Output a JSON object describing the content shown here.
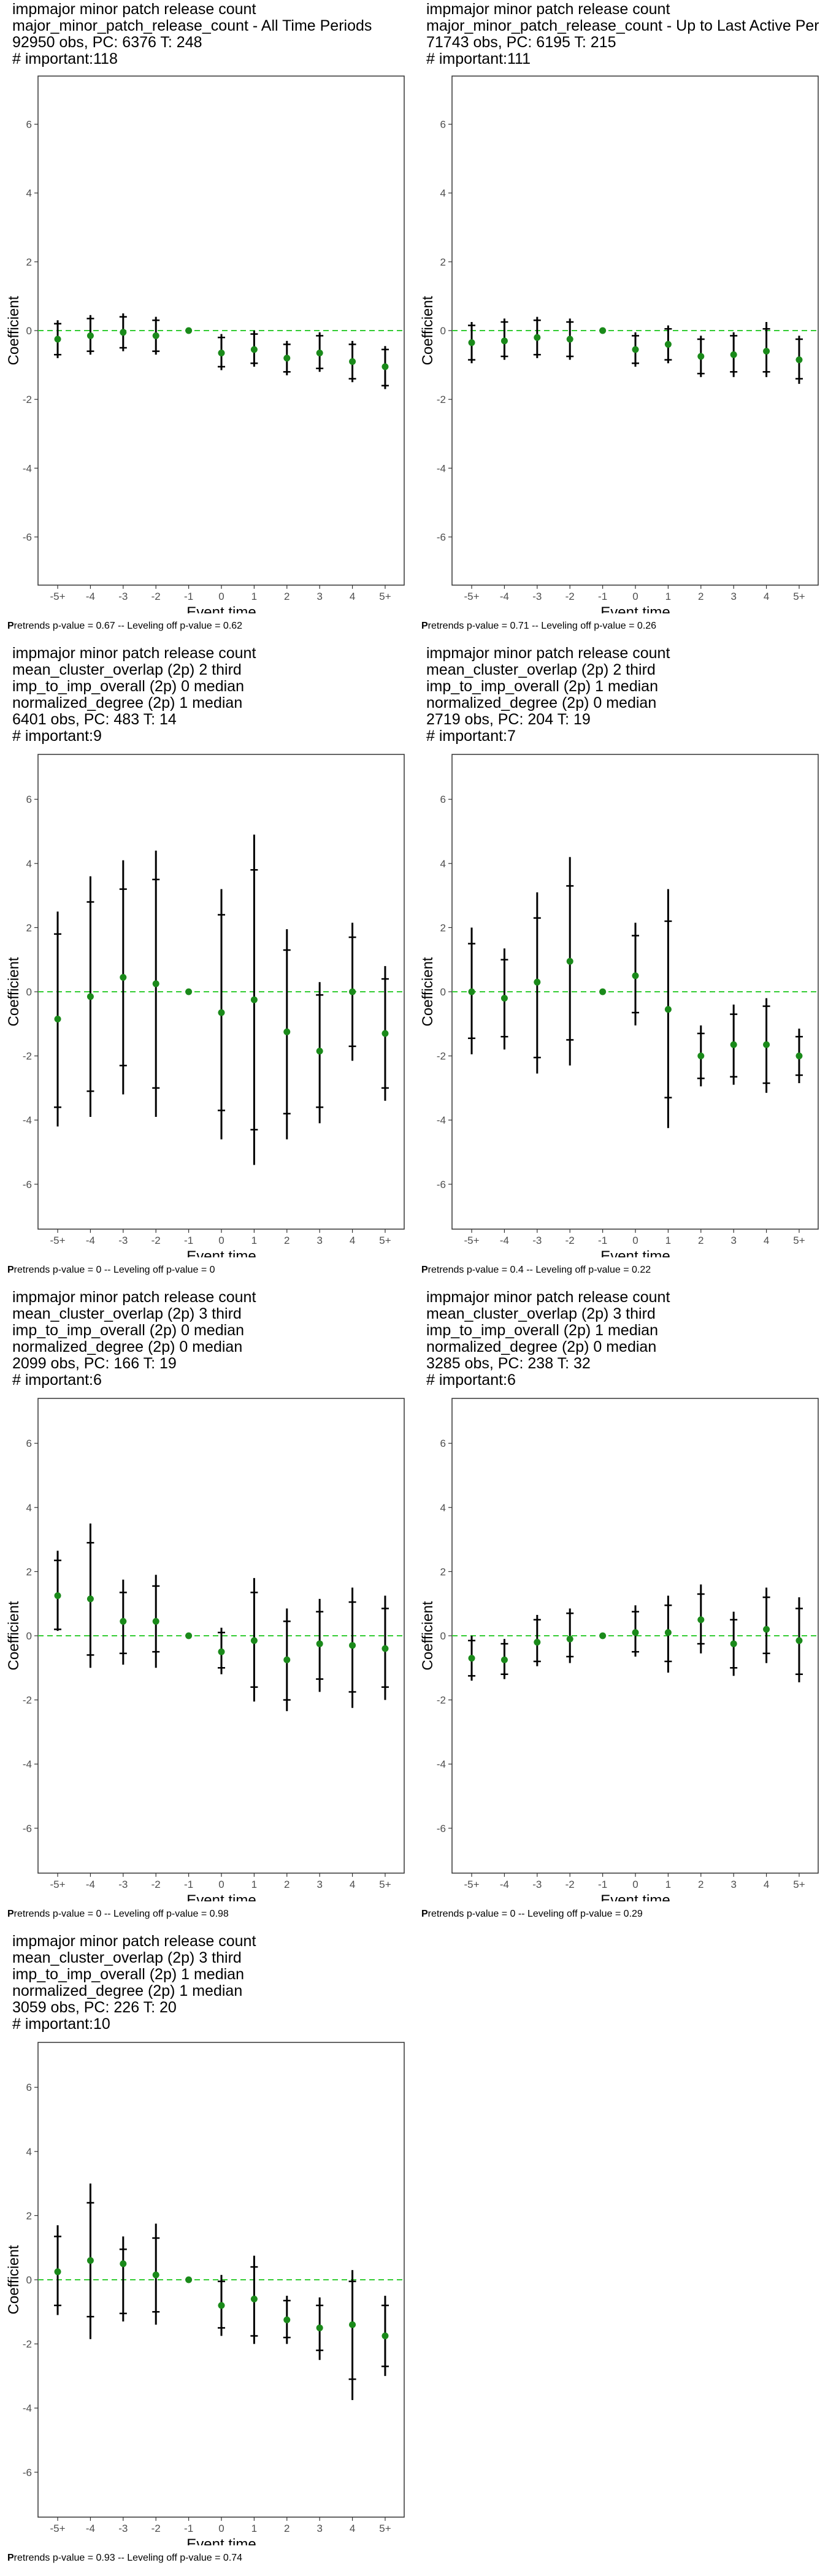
{
  "colors": {
    "point": "#1a8a1a",
    "zero_line": "#33cc33",
    "frame": "#333333",
    "bar": "#000000"
  },
  "chart_data": [
    {
      "type": "scatter",
      "title_lines": [
        " impmajor minor patch release count",
        "major_minor_patch_release_count - All Time Periods",
        "92950 obs, PC: 6376 T: 248",
        "# important:118"
      ],
      "xlabel": "Event time",
      "ylabel": "Coefficient",
      "categories": [
        "-5+",
        "-4",
        "-3",
        "-2",
        "-1",
        "0",
        "1",
        "2",
        "3",
        "4",
        "5+"
      ],
      "ylim": [
        -7.4,
        7.4
      ],
      "yticks": [
        -6,
        -4,
        -2,
        0,
        2,
        4,
        6
      ],
      "estimate": [
        -0.25,
        -0.15,
        -0.05,
        -0.15,
        0,
        -0.65,
        -0.55,
        -0.8,
        -0.65,
        -0.9,
        -1.05
      ],
      "ci95": [
        [
          -0.8,
          0.3
        ],
        [
          -0.7,
          0.45
        ],
        [
          -0.6,
          0.5
        ],
        [
          -0.7,
          0.4
        ],
        [
          0,
          0
        ],
        [
          -1.15,
          -0.1
        ],
        [
          -1.05,
          0.0
        ],
        [
          -1.3,
          -0.3
        ],
        [
          -1.2,
          -0.05
        ],
        [
          -1.5,
          -0.3
        ],
        [
          -1.7,
          -0.45
        ]
      ],
      "ci90": [
        [
          -0.7,
          0.2
        ],
        [
          -0.6,
          0.35
        ],
        [
          -0.5,
          0.4
        ],
        [
          -0.6,
          0.3
        ],
        [
          0,
          0
        ],
        [
          -1.05,
          -0.2
        ],
        [
          -0.95,
          -0.1
        ],
        [
          -1.2,
          -0.4
        ],
        [
          -1.1,
          -0.15
        ],
        [
          -1.4,
          -0.4
        ],
        [
          -1.6,
          -0.55
        ]
      ],
      "footnote": {
        "bold": "P",
        "text": "retrends p-value = 0.67 -- Leveling off p-value = 0.62"
      }
    },
    {
      "type": "scatter",
      "title_lines": [
        " impmajor minor patch release count",
        "major_minor_patch_release_count - Up to Last Active Period",
        "71743 obs, PC: 6195 T: 215",
        "# important:111"
      ],
      "xlabel": "Event time",
      "ylabel": "Coefficient",
      "categories": [
        "-5+",
        "-4",
        "-3",
        "-2",
        "-1",
        "0",
        "1",
        "2",
        "3",
        "4",
        "5+"
      ],
      "ylim": [
        -7.4,
        7.4
      ],
      "yticks": [
        -6,
        -4,
        -2,
        0,
        2,
        4,
        6
      ],
      "estimate": [
        -0.35,
        -0.3,
        -0.2,
        -0.25,
        0,
        -0.55,
        -0.4,
        -0.75,
        -0.7,
        -0.6,
        -0.85
      ],
      "ci95": [
        [
          -0.95,
          0.25
        ],
        [
          -0.85,
          0.35
        ],
        [
          -0.8,
          0.4
        ],
        [
          -0.85,
          0.35
        ],
        [
          0,
          0
        ],
        [
          -1.05,
          -0.05
        ],
        [
          -0.95,
          0.15
        ],
        [
          -1.35,
          -0.15
        ],
        [
          -1.35,
          -0.05
        ],
        [
          -1.35,
          0.25
        ],
        [
          -1.55,
          -0.15
        ]
      ],
      "ci90": [
        [
          -0.85,
          0.15
        ],
        [
          -0.75,
          0.25
        ],
        [
          -0.7,
          0.3
        ],
        [
          -0.75,
          0.25
        ],
        [
          0,
          0
        ],
        [
          -0.95,
          -0.15
        ],
        [
          -0.85,
          0.05
        ],
        [
          -1.25,
          -0.25
        ],
        [
          -1.2,
          -0.15
        ],
        [
          -1.2,
          0.05
        ],
        [
          -1.4,
          -0.25
        ]
      ],
      "footnote": {
        "bold": "P",
        "text": "retrends p-value = 0.71 -- Leveling off p-value = 0.26"
      }
    },
    {
      "type": "scatter",
      "title_lines": [
        " impmajor minor patch release count",
        "mean_cluster_overlap (2p) 2 third",
        "imp_to_imp_overall (2p) 0 median",
        "normalized_degree (2p) 1 median",
        "6401 obs, PC: 483 T: 14",
        "# important:9"
      ],
      "xlabel": "Event time",
      "ylabel": "Coefficient",
      "categories": [
        "-5+",
        "-4",
        "-3",
        "-2",
        "-1",
        "0",
        "1",
        "2",
        "3",
        "4",
        "5+"
      ],
      "ylim": [
        -7.4,
        7.4
      ],
      "yticks": [
        -6,
        -4,
        -2,
        0,
        2,
        4,
        6
      ],
      "estimate": [
        -0.85,
        -0.15,
        0.45,
        0.25,
        0,
        -0.65,
        -0.25,
        -1.25,
        -1.85,
        0.0,
        -1.3
      ],
      "ci95": [
        [
          -4.2,
          2.5
        ],
        [
          -3.9,
          3.6
        ],
        [
          -3.2,
          4.1
        ],
        [
          -3.9,
          4.4
        ],
        [
          0,
          0
        ],
        [
          -4.6,
          3.2
        ],
        [
          -5.4,
          4.9
        ],
        [
          -4.6,
          1.95
        ],
        [
          -4.1,
          0.3
        ],
        [
          -2.15,
          2.15
        ],
        [
          -3.4,
          0.8
        ]
      ],
      "ci90": [
        [
          -3.6,
          1.8
        ],
        [
          -3.1,
          2.8
        ],
        [
          -2.3,
          3.2
        ],
        [
          -3.0,
          3.5
        ],
        [
          0,
          0
        ],
        [
          -3.7,
          2.4
        ],
        [
          -4.3,
          3.8
        ],
        [
          -3.8,
          1.3
        ],
        [
          -3.6,
          -0.1
        ],
        [
          -1.7,
          1.7
        ],
        [
          -3.0,
          0.4
        ]
      ],
      "footnote": {
        "bold": "P",
        "text": "retrends p-value = 0 -- Leveling off p-value = 0"
      }
    },
    {
      "type": "scatter",
      "title_lines": [
        " impmajor minor patch release count",
        "mean_cluster_overlap (2p) 2 third",
        "imp_to_imp_overall (2p) 1 median",
        "normalized_degree (2p) 0 median",
        "2719 obs, PC: 204 T: 19",
        "# important:7"
      ],
      "xlabel": "Event time",
      "ylabel": "Coefficient",
      "categories": [
        "-5+",
        "-4",
        "-3",
        "-2",
        "-1",
        "0",
        "1",
        "2",
        "3",
        "4",
        "5+"
      ],
      "ylim": [
        -7.4,
        7.4
      ],
      "yticks": [
        -6,
        -4,
        -2,
        0,
        2,
        4,
        6
      ],
      "estimate": [
        0.0,
        -0.2,
        0.3,
        0.95,
        0,
        0.5,
        -0.55,
        -2.0,
        -1.65,
        -1.65,
        -2.0
      ],
      "ci95": [
        [
          -1.95,
          2.0
        ],
        [
          -1.8,
          1.35
        ],
        [
          -2.55,
          3.1
        ],
        [
          -2.3,
          4.2
        ],
        [
          0,
          0
        ],
        [
          -1.05,
          2.15
        ],
        [
          -4.25,
          3.2
        ],
        [
          -2.95,
          -1.05
        ],
        [
          -2.9,
          -0.4
        ],
        [
          -3.15,
          -0.2
        ],
        [
          -2.85,
          -1.15
        ]
      ],
      "ci90": [
        [
          -1.45,
          1.5
        ],
        [
          -1.4,
          1.0
        ],
        [
          -2.05,
          2.3
        ],
        [
          -1.5,
          3.3
        ],
        [
          0,
          0
        ],
        [
          -0.65,
          1.75
        ],
        [
          -3.3,
          2.2
        ],
        [
          -2.7,
          -1.3
        ],
        [
          -2.65,
          -0.7
        ],
        [
          -2.85,
          -0.45
        ],
        [
          -2.6,
          -1.4
        ]
      ],
      "footnote": {
        "bold": "P",
        "text": "retrends p-value = 0.4 -- Leveling off p-value = 0.22"
      }
    },
    {
      "type": "scatter",
      "title_lines": [
        " impmajor minor patch release count",
        "mean_cluster_overlap (2p) 3 third",
        "imp_to_imp_overall (2p) 0 median",
        "normalized_degree (2p) 0 median",
        "2099 obs, PC: 166 T: 19",
        "# important:6"
      ],
      "xlabel": "Event time",
      "ylabel": "Coefficient",
      "categories": [
        "-5+",
        "-4",
        "-3",
        "-2",
        "-1",
        "0",
        "1",
        "2",
        "3",
        "4",
        "5+"
      ],
      "ylim": [
        -7.4,
        7.4
      ],
      "yticks": [
        -6,
        -4,
        -2,
        0,
        2,
        4,
        6
      ],
      "estimate": [
        1.25,
        1.15,
        0.45,
        0.45,
        0,
        -0.5,
        -0.15,
        -0.75,
        -0.25,
        -0.3,
        -0.4
      ],
      "ci95": [
        [
          0.15,
          2.65
        ],
        [
          -1.0,
          3.5
        ],
        [
          -0.9,
          1.75
        ],
        [
          -1.0,
          1.9
        ],
        [
          0,
          0
        ],
        [
          -1.2,
          0.25
        ],
        [
          -2.05,
          1.8
        ],
        [
          -2.35,
          0.85
        ],
        [
          -1.75,
          1.15
        ],
        [
          -2.25,
          1.5
        ],
        [
          -2.0,
          1.25
        ]
      ],
      "ci90": [
        [
          0.2,
          2.35
        ],
        [
          -0.6,
          2.9
        ],
        [
          -0.55,
          1.35
        ],
        [
          -0.5,
          1.55
        ],
        [
          0,
          0
        ],
        [
          -1.0,
          0.1
        ],
        [
          -1.6,
          1.35
        ],
        [
          -2.0,
          0.45
        ],
        [
          -1.35,
          0.75
        ],
        [
          -1.75,
          1.05
        ],
        [
          -1.6,
          0.85
        ]
      ],
      "footnote": {
        "bold": "P",
        "text": "retrends p-value = 0 -- Leveling off p-value = 0.98"
      }
    },
    {
      "type": "scatter",
      "title_lines": [
        " impmajor minor patch release count",
        "mean_cluster_overlap (2p) 3 third",
        "imp_to_imp_overall (2p) 1 median",
        "normalized_degree (2p) 0 median",
        "3285 obs, PC: 238 T: 32",
        "# important:6"
      ],
      "xlabel": "Event time",
      "ylabel": "Coefficient",
      "categories": [
        "-5+",
        "-4",
        "-3",
        "-2",
        "-1",
        "0",
        "1",
        "2",
        "3",
        "4",
        "5+"
      ],
      "ylim": [
        -7.4,
        7.4
      ],
      "yticks": [
        -6,
        -4,
        -2,
        0,
        2,
        4,
        6
      ],
      "estimate": [
        -0.7,
        -0.75,
        -0.2,
        -0.1,
        0,
        0.1,
        0.1,
        0.5,
        -0.25,
        0.2,
        -0.15
      ],
      "ci95": [
        [
          -1.4,
          0.0
        ],
        [
          -1.35,
          -0.1
        ],
        [
          -0.95,
          0.65
        ],
        [
          -0.85,
          0.85
        ],
        [
          0,
          0
        ],
        [
          -0.65,
          0.95
        ],
        [
          -1.15,
          1.25
        ],
        [
          -0.55,
          1.6
        ],
        [
          -1.25,
          0.75
        ],
        [
          -0.85,
          1.5
        ],
        [
          -1.45,
          1.2
        ]
      ],
      "ci90": [
        [
          -1.25,
          -0.15
        ],
        [
          -1.2,
          -0.25
        ],
        [
          -0.8,
          0.5
        ],
        [
          -0.65,
          0.7
        ],
        [
          0,
          0
        ],
        [
          -0.5,
          0.75
        ],
        [
          -0.8,
          0.95
        ],
        [
          -0.25,
          1.3
        ],
        [
          -1.0,
          0.5
        ],
        [
          -0.55,
          1.2
        ],
        [
          -1.2,
          0.85
        ]
      ],
      "footnote": {
        "bold": "P",
        "text": "retrends p-value = 0 -- Leveling off p-value = 0.29"
      }
    },
    {
      "type": "scatter",
      "title_lines": [
        " impmajor minor patch release count",
        "mean_cluster_overlap (2p) 3 third",
        "imp_to_imp_overall (2p) 1 median",
        "normalized_degree (2p) 1 median",
        "3059 obs, PC: 226 T: 20",
        "# important:10"
      ],
      "xlabel": "Event time",
      "ylabel": "Coefficient",
      "categories": [
        "-5+",
        "-4",
        "-3",
        "-2",
        "-1",
        "0",
        "1",
        "2",
        "3",
        "4",
        "5+"
      ],
      "ylim": [
        -7.4,
        7.4
      ],
      "yticks": [
        -6,
        -4,
        -2,
        0,
        2,
        4,
        6
      ],
      "estimate": [
        0.25,
        0.6,
        0.5,
        0.15,
        0,
        -0.8,
        -0.6,
        -1.25,
        -1.5,
        -1.4,
        -1.75
      ],
      "ci95": [
        [
          -1.1,
          1.7
        ],
        [
          -1.85,
          3.0
        ],
        [
          -1.3,
          1.35
        ],
        [
          -1.4,
          1.75
        ],
        [
          0,
          0
        ],
        [
          -1.75,
          0.15
        ],
        [
          -2.0,
          0.75
        ],
        [
          -2.0,
          -0.5
        ],
        [
          -2.5,
          -0.55
        ],
        [
          -3.75,
          0.3
        ],
        [
          -3.0,
          -0.5
        ]
      ],
      "ci90": [
        [
          -0.8,
          1.35
        ],
        [
          -1.15,
          2.4
        ],
        [
          -1.05,
          0.95
        ],
        [
          -1.0,
          1.3
        ],
        [
          0,
          0
        ],
        [
          -1.5,
          -0.05
        ],
        [
          -1.75,
          0.4
        ],
        [
          -1.8,
          -0.65
        ],
        [
          -2.2,
          -0.8
        ],
        [
          -3.1,
          -0.05
        ],
        [
          -2.7,
          -0.8
        ]
      ],
      "footnote": {
        "bold": "P",
        "text": "retrends p-value = 0.93 -- Leveling off p-value = 0.74"
      }
    }
  ]
}
